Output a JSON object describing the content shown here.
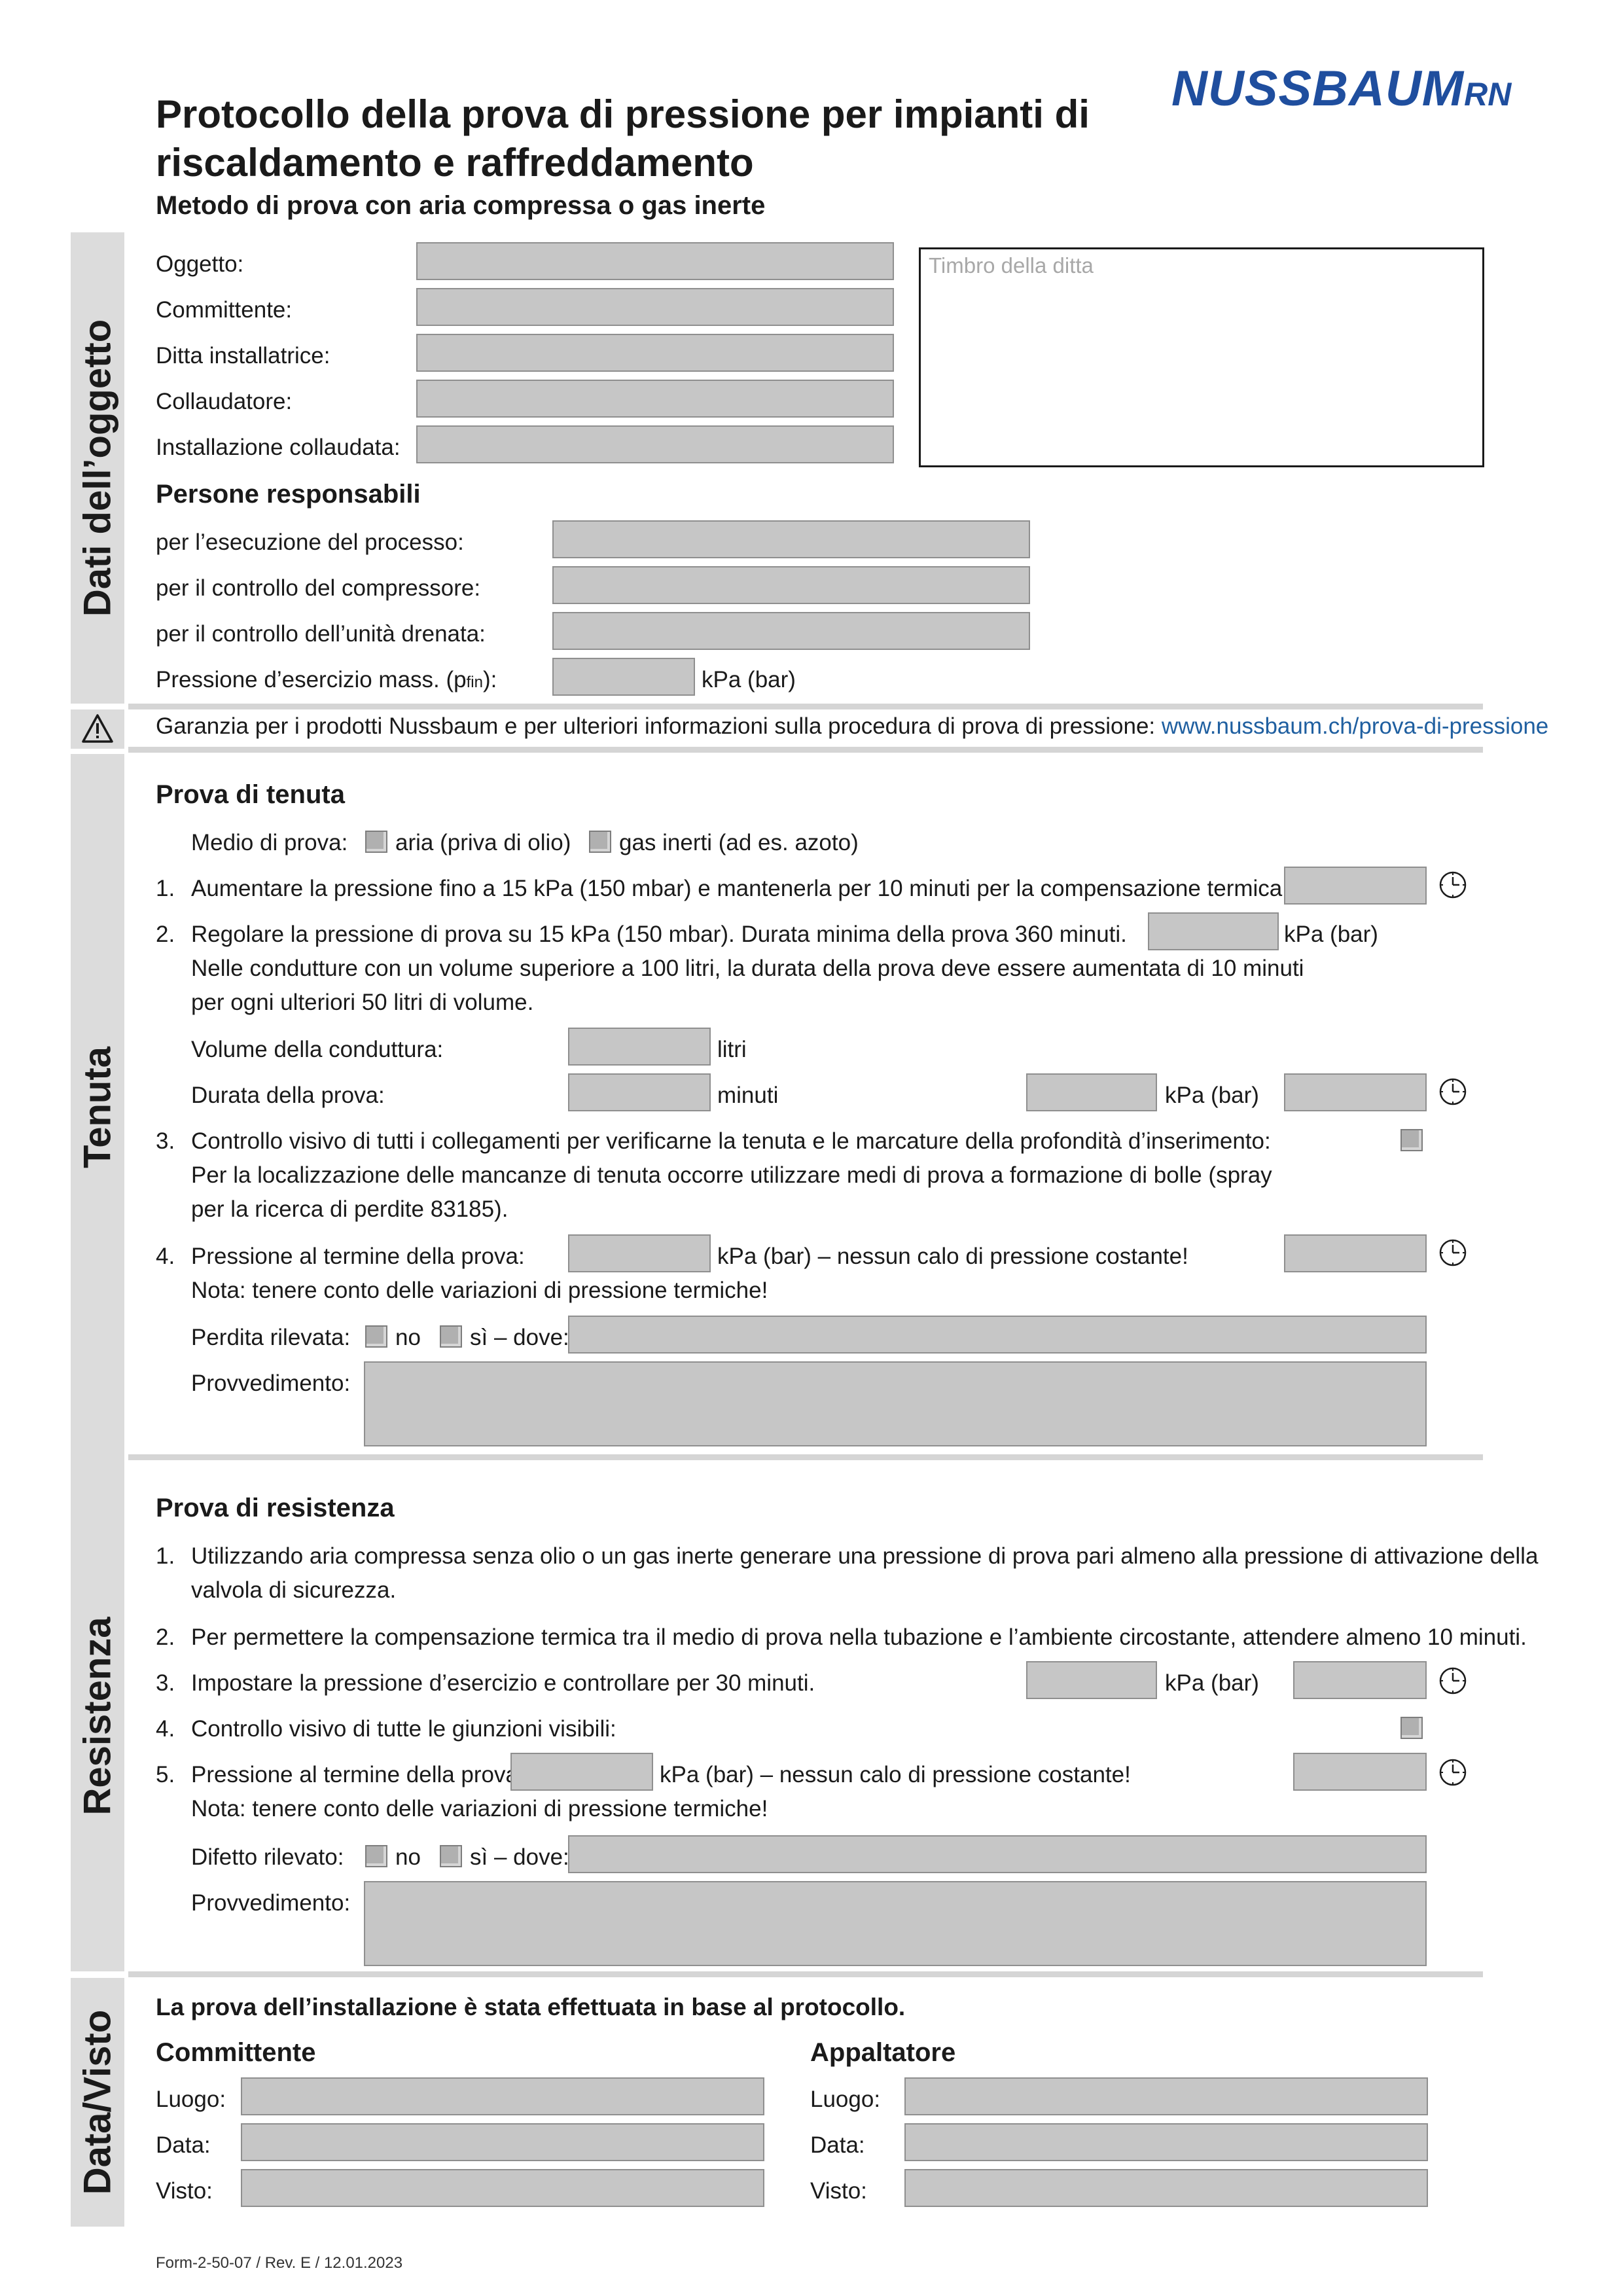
{
  "brand": {
    "name": "NUSSBAUM",
    "suffix": "RN",
    "color": "#1f4e9e"
  },
  "header": {
    "title_line1": "Protocollo della prova di pressione per impianti di",
    "title_line2": "riscaldamento e raffreddamento",
    "subtitle": "Metodo di prova con aria compressa o gas inerte"
  },
  "object": {
    "section_title": "Dati dell’oggetto",
    "fields": [
      "Oggetto:",
      "Committente:",
      "Ditta installatrice:",
      "Collaudatore:",
      "Installazione collaudata:"
    ],
    "stamp_placeholder": "Timbro della ditta",
    "responsible_title": "Persone responsabili",
    "responsible_fields": [
      "per l’esecuzione del processo:",
      "per il controllo del compressore:",
      "per il controllo dell’unità drenata:"
    ],
    "pressure_label": "Pressione d’esercizio mass. (p",
    "pressure_sub": "fin",
    "pressure_close": "):",
    "pressure_unit": "kPa (bar)"
  },
  "warning": {
    "text": "Garanzia per i prodotti Nussbaum e per ulteriori informazioni sulla procedura di prova di pressione:",
    "link": "www.nussbaum.ch/prova-di-pressione",
    "icon": "warning-triangle-icon"
  },
  "tightness": {
    "section_title": "Tenuta",
    "title": "Prova di tenuta",
    "medium_label": "Medio di prova:",
    "medium_options": [
      "aria (priva di olio)",
      "gas inerti (ad es. azoto)"
    ],
    "step1": "Aumentare la pressione fino a 15 kPa (150 mbar) e mantenerla per 10 minuti per la compensazione termica.",
    "step2_l1": "Regolare la pressione di prova su 15 kPa (150 mbar). Durata minima della prova 360 minuti.",
    "step2_unit": "kPa (bar)",
    "step2_l2": "Nelle condutture con un volume superiore a 100 litri, la durata della prova deve essere aumentata di 10 minuti",
    "step2_l3": "per ogni ulteriori 50 litri di volume.",
    "volume_label": "Volume della conduttura:",
    "volume_unit": "litri",
    "duration_label": "Durata della prova:",
    "duration_unit": "minuti",
    "duration_unit2": "kPa (bar)",
    "step3_l1": "Controllo visivo di tutti i collegamenti per verificarne la tenuta e le marcature della profondità d’inserimento:",
    "step3_l2": "Per la localizzazione delle mancanze di tenuta occorre utilizzare medi di prova a formazione di bolle (spray",
    "step3_l3": "per la ricerca di perdite 83185).",
    "step4_label": "Pressione al termine della prova:",
    "step4_unit": "kPa (bar) – nessun calo di pressione costante!",
    "step4_note": "Nota: tenere conto delle variazioni di pressione termiche!",
    "leak_label": "Perdita rilevata:",
    "leak_no": "no",
    "leak_yes": "sì – dove:",
    "measure_label": "Provvedimento:",
    "numbers": [
      "1.",
      "2.",
      "3.",
      "4."
    ]
  },
  "strength": {
    "section_title": "Resistenza",
    "title": "Prova di resistenza",
    "step1_l1": "Utilizzando aria compressa senza olio o un gas inerte generare una pressione di prova pari almeno alla pressione di attivazione della",
    "step1_l2": "valvola di sicurezza.",
    "step2": "Per permettere la compensazione termica tra il medio di prova nella tubazione e l’ambiente circostante, attendere almeno 10 minuti.",
    "step3": "Impostare la pressione d’esercizio e controllare per 30 minuti.",
    "step3_unit": "kPa (bar)",
    "step4": "Controllo visivo di tutte le giunzioni visibili:",
    "step5_label": "Pressione al termine della prova:",
    "step5_unit": "kPa (bar) – nessun calo di pressione costante!",
    "step5_note": "Nota: tenere conto delle variazioni di pressione termiche!",
    "defect_label": "Difetto rilevato:",
    "defect_no": "no",
    "defect_yes": "sì – dove:",
    "measure_label": "Provvedimento:",
    "numbers": [
      "1.",
      "2.",
      "3.",
      "4.",
      "5."
    ]
  },
  "signature": {
    "section_title": "Data/Visto",
    "statement": "La prova dell’installazione è stata effettuata in base al protocollo.",
    "client_title": "Committente",
    "contractor_title": "Appaltatore",
    "fields": [
      "Luogo:",
      "Data:",
      "Visto:"
    ]
  },
  "footer": {
    "form_id": "Form-2-50-07 / Rev. E / 12.01.2023"
  }
}
